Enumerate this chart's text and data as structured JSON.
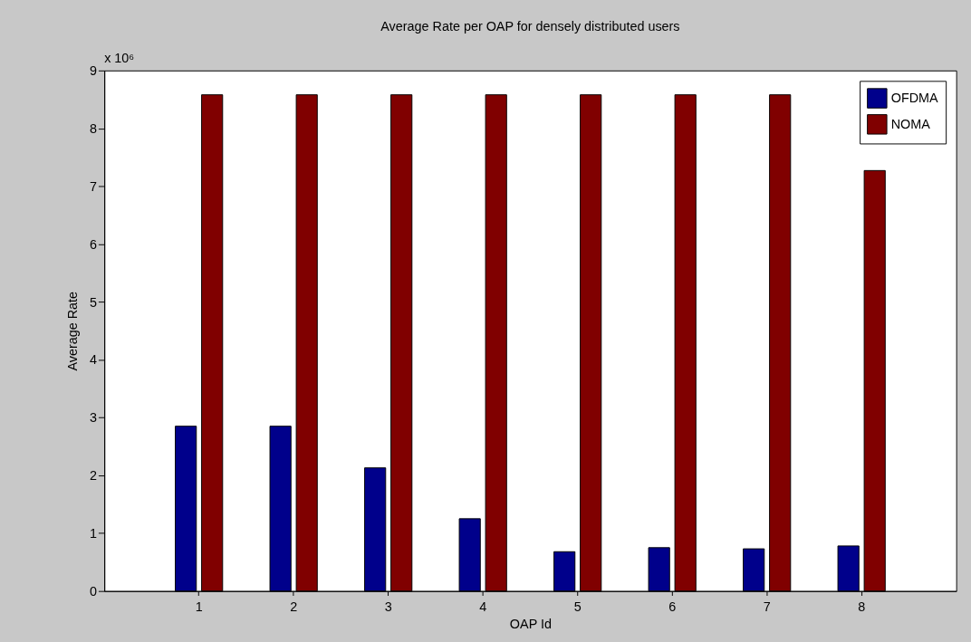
{
  "chart_data": {
    "type": "bar",
    "title": "Average Rate per OAP for densely distributed users",
    "xlabel": "OAP Id",
    "ylabel": "Average Rate",
    "categories": [
      "1",
      "2",
      "3",
      "4",
      "5",
      "6",
      "7",
      "8"
    ],
    "series": [
      {
        "name": "OFDMA",
        "color": "#00008b",
        "values": [
          2.85,
          2.85,
          2.13,
          1.25,
          0.68,
          0.75,
          0.73,
          0.78
        ]
      },
      {
        "name": "NOMA",
        "color": "#800000",
        "values": [
          8.58,
          8.58,
          8.58,
          8.58,
          8.58,
          8.58,
          8.58,
          7.27
        ]
      }
    ],
    "ylim": [
      0,
      9
    ],
    "yticks": [
      0,
      1,
      2,
      3,
      4,
      5,
      6,
      7,
      8,
      9
    ],
    "annotations": [
      "x 10⁶"
    ],
    "legend": "top right",
    "grid": false
  }
}
